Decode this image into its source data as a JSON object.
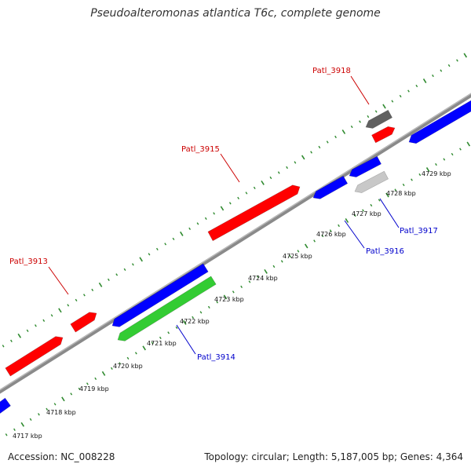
{
  "title": "Pseudoalteromonas atlantica T6c, complete genome",
  "accession_text": "Accession: NC_008228",
  "topology_text": "Topology: circular; Length: 5,187,005 bp; Genes: 4,364",
  "colors": {
    "backbone": "#8a8a8a",
    "tick": "#2f8a2f",
    "forward_gene": "#ff0000",
    "reverse_gene": "#0000ff",
    "label_forward": "#cc0000",
    "label_reverse": "#0000cc",
    "highlight_green": "#33cc33",
    "dark_gray": "#606060",
    "light_gray": "#c8c8c8"
  },
  "kbp_labels": [
    "4717 kbp",
    "4718 kbp",
    "4719 kbp",
    "4720 kbp",
    "4721 kbp",
    "4722 kbp",
    "4723 kbp",
    "4724 kbp",
    "4725 kbp",
    "4726 kbp",
    "4727 kbp",
    "4728 kbp",
    "4729 kbp"
  ],
  "gene_labels": [
    {
      "text": "Patl_3913",
      "strand": "forward"
    },
    {
      "text": "Patl_3914",
      "strand": "reverse"
    },
    {
      "text": "Patl_3915",
      "strand": "forward"
    },
    {
      "text": "Patl_3916",
      "strand": "reverse"
    },
    {
      "text": "Patl_3917",
      "strand": "reverse"
    },
    {
      "text": "Patl_3918",
      "strand": "forward"
    }
  ]
}
